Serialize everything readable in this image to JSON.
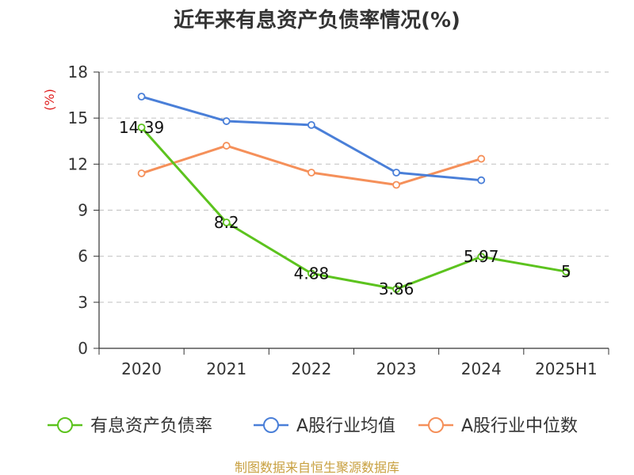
{
  "chart_data": {
    "type": "line",
    "title": "近年来有息资产负债率情况(%)",
    "ylabel": "(%)",
    "categories": [
      "2020",
      "2021",
      "2022",
      "2023",
      "2024",
      "2025H1"
    ],
    "y_ticks": [
      "0",
      "3",
      "6",
      "9",
      "12",
      "15",
      "18"
    ],
    "ylim": [
      0,
      18
    ],
    "grid": true,
    "legend_position": "bottom",
    "series": [
      {
        "name": "有息资产负债率",
        "color": "#5cc31e",
        "values": [
          14.39,
          8.2,
          4.88,
          3.86,
          5.97,
          5
        ],
        "labels": [
          "14.39",
          "8.2",
          "4.88",
          "3.86",
          "5.97",
          "5"
        ]
      },
      {
        "name": "A股行业均值",
        "color": "#4a7fd8",
        "values": [
          16.4,
          14.8,
          14.55,
          11.45,
          10.95,
          null
        ]
      },
      {
        "name": "A股行业中位数",
        "color": "#f5905a",
        "values": [
          11.4,
          13.2,
          11.45,
          10.65,
          12.35,
          null
        ]
      }
    ],
    "source": "制图数据来自恒生聚源数据库"
  }
}
